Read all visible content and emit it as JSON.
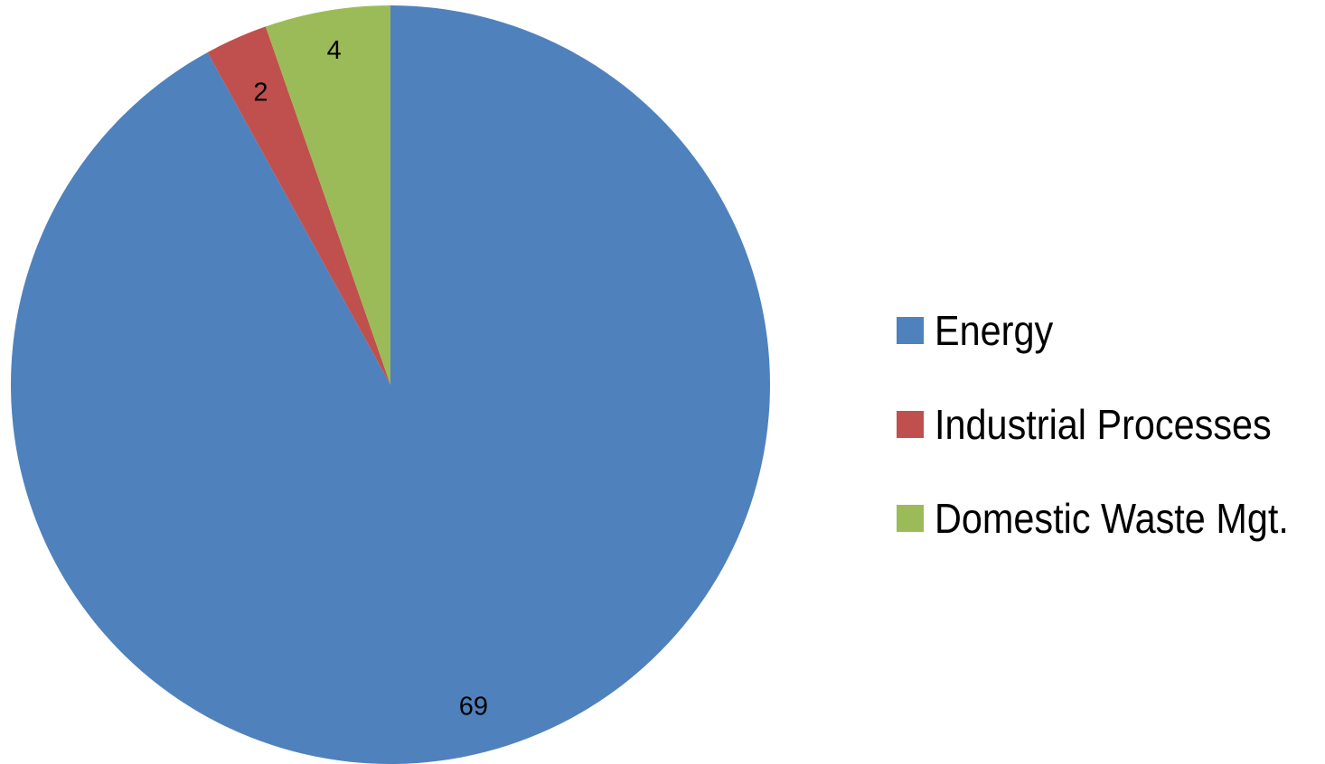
{
  "chart_data": {
    "type": "pie",
    "categories": [
      "Energy",
      "Industrial Processes",
      "Domestic Waste Mgt."
    ],
    "values": [
      69,
      2,
      4
    ],
    "data_labels": [
      "69",
      "2",
      "4"
    ],
    "colors": [
      "#4F81BD",
      "#C0504D",
      "#9BBB59"
    ],
    "start": "top",
    "direction": "clockwise",
    "legend_position": "right",
    "title": "",
    "xlabel": "",
    "ylabel": ""
  },
  "legend": {
    "items": [
      {
        "label": "Energy",
        "color": "#4F81BD"
      },
      {
        "label": "Industrial Processes",
        "color": "#C0504D"
      },
      {
        "label": "Domestic Waste Mgt.",
        "color": "#9BBB59"
      }
    ]
  }
}
